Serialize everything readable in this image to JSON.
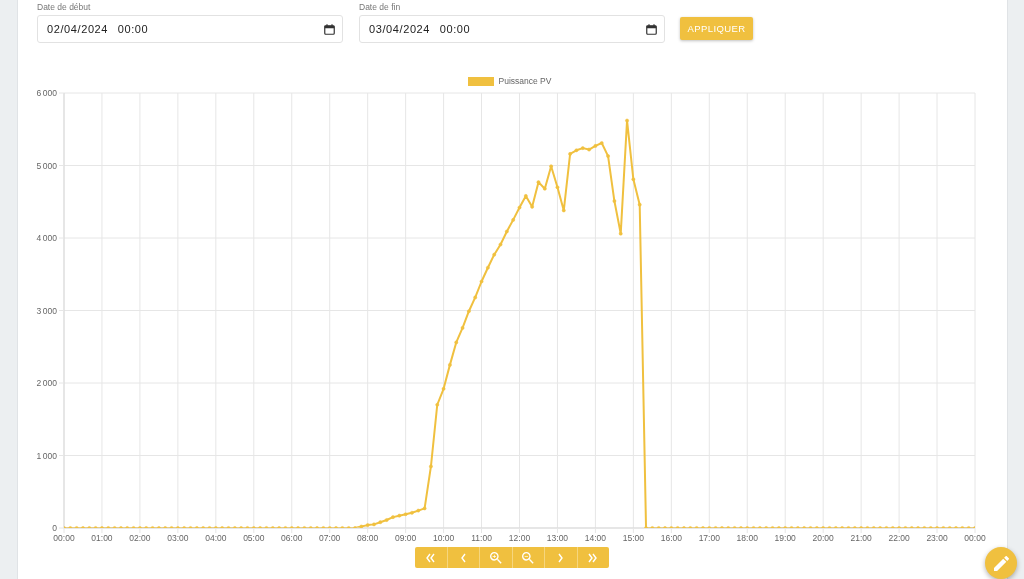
{
  "chart_data": {
    "type": "line",
    "x": [
      "2024-04-02T00:00",
      "2024-04-02T00:10",
      "2024-04-02T00:20",
      "2024-04-02T00:30",
      "2024-04-02T00:40",
      "2024-04-02T00:50",
      "2024-04-02T01:00",
      "2024-04-02T01:10",
      "2024-04-02T01:20",
      "2024-04-02T01:30",
      "2024-04-02T01:40",
      "2024-04-02T01:50",
      "2024-04-02T02:00",
      "2024-04-02T02:10",
      "2024-04-02T02:20",
      "2024-04-02T02:30",
      "2024-04-02T02:40",
      "2024-04-02T02:50",
      "2024-04-02T03:00",
      "2024-04-02T03:10",
      "2024-04-02T03:20",
      "2024-04-02T03:30",
      "2024-04-02T03:40",
      "2024-04-02T03:50",
      "2024-04-02T04:00",
      "2024-04-02T04:10",
      "2024-04-02T04:20",
      "2024-04-02T04:30",
      "2024-04-02T04:40",
      "2024-04-02T04:50",
      "2024-04-02T05:00",
      "2024-04-02T05:10",
      "2024-04-02T05:20",
      "2024-04-02T05:30",
      "2024-04-02T05:40",
      "2024-04-02T05:50",
      "2024-04-02T06:00",
      "2024-04-02T06:10",
      "2024-04-02T06:20",
      "2024-04-02T06:30",
      "2024-04-02T06:40",
      "2024-04-02T06:50",
      "2024-04-02T07:00",
      "2024-04-02T07:10",
      "2024-04-02T07:20",
      "2024-04-02T07:30",
      "2024-04-02T07:40",
      "2024-04-02T07:50",
      "2024-04-02T08:00",
      "2024-04-02T08:10",
      "2024-04-02T08:20",
      "2024-04-02T08:30",
      "2024-04-02T08:40",
      "2024-04-02T08:50",
      "2024-04-02T09:00",
      "2024-04-02T09:10",
      "2024-04-02T09:20",
      "2024-04-02T09:30",
      "2024-04-02T09:40",
      "2024-04-02T09:50",
      "2024-04-02T10:00",
      "2024-04-02T10:10",
      "2024-04-02T10:20",
      "2024-04-02T10:30",
      "2024-04-02T10:40",
      "2024-04-02T10:50",
      "2024-04-02T11:00",
      "2024-04-02T11:10",
      "2024-04-02T11:20",
      "2024-04-02T11:30",
      "2024-04-02T11:40",
      "2024-04-02T11:50",
      "2024-04-02T12:00",
      "2024-04-02T12:10",
      "2024-04-02T12:20",
      "2024-04-02T12:30",
      "2024-04-02T12:40",
      "2024-04-02T12:50",
      "2024-04-02T13:00",
      "2024-04-02T13:10",
      "2024-04-02T13:20",
      "2024-04-02T13:30",
      "2024-04-02T13:40",
      "2024-04-02T13:50",
      "2024-04-02T14:00",
      "2024-04-02T14:10",
      "2024-04-02T14:20",
      "2024-04-02T14:30",
      "2024-04-02T14:40",
      "2024-04-02T14:50",
      "2024-04-02T15:00",
      "2024-04-02T15:10",
      "2024-04-02T15:20",
      "2024-04-02T15:30",
      "2024-04-02T15:40",
      "2024-04-02T15:50",
      "2024-04-02T16:00",
      "2024-04-02T16:10",
      "2024-04-02T16:20",
      "2024-04-02T16:30",
      "2024-04-02T16:40",
      "2024-04-02T16:50",
      "2024-04-02T17:00",
      "2024-04-02T17:10",
      "2024-04-02T17:20",
      "2024-04-02T17:30",
      "2024-04-02T17:40",
      "2024-04-02T17:50",
      "2024-04-02T18:00",
      "2024-04-02T18:10",
      "2024-04-02T18:20",
      "2024-04-02T18:30",
      "2024-04-02T18:40",
      "2024-04-02T18:50",
      "2024-04-02T19:00",
      "2024-04-02T19:10",
      "2024-04-02T19:20",
      "2024-04-02T19:30",
      "2024-04-02T19:40",
      "2024-04-02T19:50",
      "2024-04-02T20:00",
      "2024-04-02T20:10",
      "2024-04-02T20:20",
      "2024-04-02T20:30",
      "2024-04-02T20:40",
      "2024-04-02T20:50",
      "2024-04-02T21:00",
      "2024-04-02T21:10",
      "2024-04-02T21:20",
      "2024-04-02T21:30",
      "2024-04-02T21:40",
      "2024-04-02T21:50",
      "2024-04-02T22:00",
      "2024-04-02T22:10",
      "2024-04-02T22:20",
      "2024-04-02T22:30",
      "2024-04-02T22:40",
      "2024-04-02T22:50",
      "2024-04-02T23:00",
      "2024-04-02T23:10",
      "2024-04-02T23:20",
      "2024-04-02T23:30",
      "2024-04-02T23:40",
      "2024-04-02T23:50",
      "2024-04-03T00:00"
    ],
    "series": [
      {
        "name": "Puissance PV",
        "color": "#f0c03f",
        "values": [
          0,
          0,
          0,
          0,
          0,
          0,
          0,
          0,
          0,
          0,
          0,
          0,
          0,
          0,
          0,
          0,
          0,
          0,
          0,
          0,
          0,
          0,
          0,
          0,
          0,
          0,
          0,
          0,
          0,
          0,
          0,
          0,
          0,
          0,
          0,
          0,
          0,
          0,
          0,
          0,
          0,
          0,
          0,
          0,
          0,
          0,
          0,
          20,
          40,
          50,
          80,
          110,
          150,
          170,
          190,
          210,
          240,
          270,
          850,
          1700,
          1920,
          2250,
          2560,
          2760,
          2990,
          3180,
          3400,
          3590,
          3770,
          3910,
          4090,
          4250,
          4420,
          4580,
          4430,
          4770,
          4680,
          4990,
          4700,
          4380,
          5160,
          5210,
          5240,
          5220,
          5270,
          5310,
          5130,
          4510,
          4060,
          5620,
          4810,
          4460,
          0,
          0,
          0,
          0,
          0,
          0,
          0,
          0,
          0,
          0,
          0,
          0,
          0,
          0,
          0,
          0,
          0,
          0,
          0,
          0,
          0,
          0,
          0,
          0,
          0,
          0,
          0,
          0,
          0,
          0,
          0,
          0,
          0,
          0,
          0,
          0,
          0,
          0,
          0,
          0,
          0,
          0,
          0,
          0,
          0,
          0,
          0,
          0,
          0,
          0,
          0,
          0,
          0
        ]
      }
    ],
    "xlim": [
      "2024-04-02T00:00",
      "2024-04-03T00:00"
    ],
    "xticks": [
      {
        "value": "2024-04-02T00:00",
        "label": "00:00"
      },
      {
        "value": "2024-04-02T01:00",
        "label": "01:00"
      },
      {
        "value": "2024-04-02T02:00",
        "label": "02:00"
      },
      {
        "value": "2024-04-02T03:00",
        "label": "03:00"
      },
      {
        "value": "2024-04-02T04:00",
        "label": "04:00"
      },
      {
        "value": "2024-04-02T05:00",
        "label": "05:00"
      },
      {
        "value": "2024-04-02T06:00",
        "label": "06:00"
      },
      {
        "value": "2024-04-02T07:00",
        "label": "07:00"
      },
      {
        "value": "2024-04-02T08:00",
        "label": "08:00"
      },
      {
        "value": "2024-04-02T09:00",
        "label": "09:00"
      },
      {
        "value": "2024-04-02T10:00",
        "label": "10:00"
      },
      {
        "value": "2024-04-02T11:00",
        "label": "11:00"
      },
      {
        "value": "2024-04-02T12:00",
        "label": "12:00"
      },
      {
        "value": "2024-04-02T13:00",
        "label": "13:00"
      },
      {
        "value": "2024-04-02T14:00",
        "label": "14:00"
      },
      {
        "value": "2024-04-02T15:00",
        "label": "15:00"
      },
      {
        "value": "2024-04-02T16:00",
        "label": "16:00"
      },
      {
        "value": "2024-04-02T17:00",
        "label": "17:00"
      },
      {
        "value": "2024-04-02T18:00",
        "label": "18:00"
      },
      {
        "value": "2024-04-02T19:00",
        "label": "19:00"
      },
      {
        "value": "2024-04-02T20:00",
        "label": "20:00"
      },
      {
        "value": "2024-04-02T21:00",
        "label": "21:00"
      },
      {
        "value": "2024-04-02T22:00",
        "label": "22:00"
      },
      {
        "value": "2024-04-02T23:00",
        "label": "23:00"
      },
      {
        "value": "2024-04-03T00:00",
        "label": "00:00"
      }
    ],
    "ylim": [
      0,
      6000
    ],
    "yticks": [
      0,
      {
        "value": 1000,
        "label": "1 000"
      },
      {
        "value": 2000,
        "label": "2 000"
      },
      {
        "value": 3000,
        "label": "3 000"
      },
      {
        "value": 4000,
        "label": "4 000"
      },
      {
        "value": 5000,
        "label": "5 000"
      },
      {
        "value": 6000,
        "label": "6 000"
      }
    ],
    "grid": true,
    "legend": "top",
    "marker": "circle",
    "line_style": "solid",
    "annotations": [
      "Date de début",
      "02/04/2024 00:00",
      "Date de fin",
      "03/04/2024 00:00",
      "APPLIQUER"
    ]
  }
}
